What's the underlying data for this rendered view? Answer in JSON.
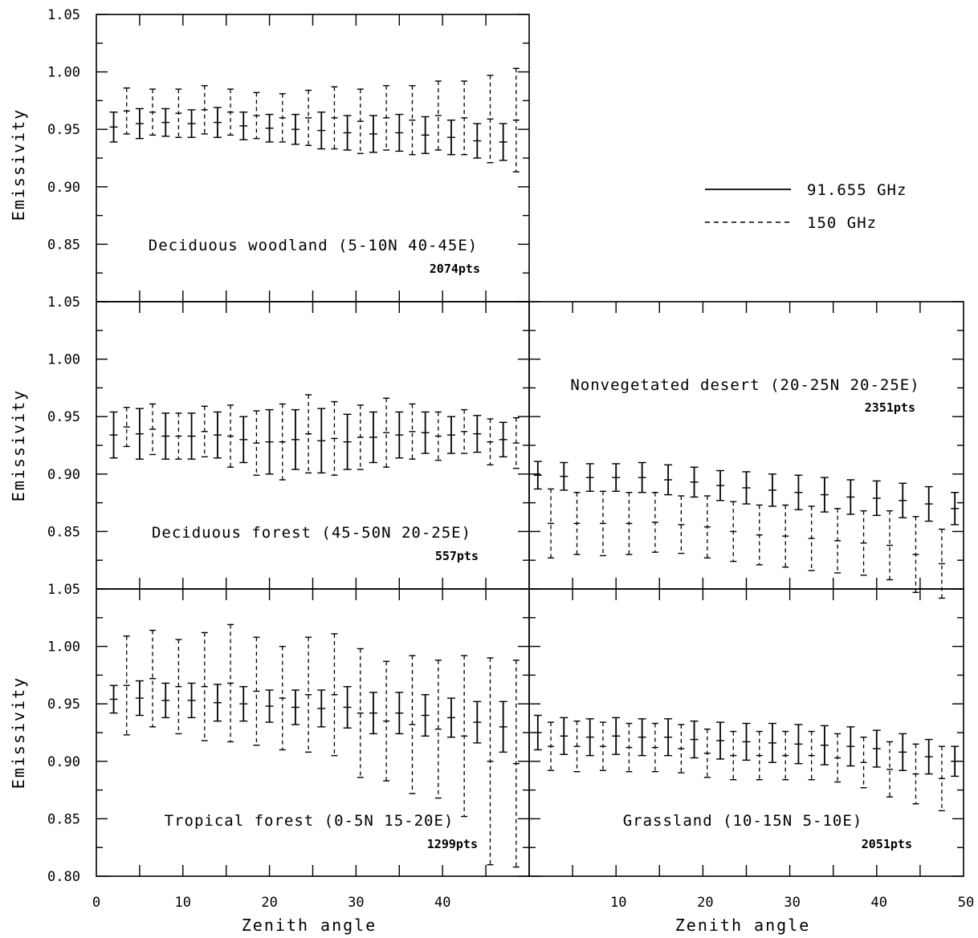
{
  "chart_data": [
    {
      "type": "errorbar",
      "label": "Deciduous woodland (5-10N 40-45E)",
      "npoints": "2074pts",
      "ylabel": "Emissivity",
      "xlabel": "",
      "ylim": [
        0.8,
        1.05
      ],
      "xlim": [
        0,
        50
      ],
      "series": [
        {
          "name": "91.655 GHz",
          "x": [
            2,
            5,
            8,
            11,
            14,
            17,
            20,
            23,
            26,
            29,
            32,
            35,
            38,
            41,
            44,
            47
          ],
          "y": [
            0.952,
            0.955,
            0.956,
            0.955,
            0.956,
            0.953,
            0.951,
            0.95,
            0.949,
            0.947,
            0.946,
            0.947,
            0.945,
            0.943,
            0.94,
            0.939
          ],
          "err": [
            0.013,
            0.013,
            0.012,
            0.012,
            0.013,
            0.012,
            0.012,
            0.013,
            0.016,
            0.015,
            0.016,
            0.016,
            0.016,
            0.015,
            0.015,
            0.016
          ]
        },
        {
          "name": "150 GHz",
          "x": [
            3.5,
            6.5,
            9.5,
            12.5,
            15.5,
            18.5,
            21.5,
            24.5,
            27.5,
            30.5,
            33.5,
            36.5,
            39.5,
            42.5,
            45.5,
            48.5
          ],
          "y": [
            0.966,
            0.965,
            0.964,
            0.967,
            0.965,
            0.962,
            0.96,
            0.96,
            0.96,
            0.957,
            0.96,
            0.958,
            0.962,
            0.96,
            0.959,
            0.958
          ],
          "err": [
            0.02,
            0.02,
            0.021,
            0.021,
            0.02,
            0.02,
            0.021,
            0.024,
            0.027,
            0.028,
            0.028,
            0.03,
            0.03,
            0.032,
            0.038,
            0.045
          ]
        }
      ]
    },
    {
      "type": "errorbar",
      "label": "Deciduous forest (45-50N 20-25E)",
      "npoints": "557pts",
      "ylabel": "Emissivity",
      "xlabel": "",
      "ylim": [
        0.8,
        1.05
      ],
      "xlim": [
        0,
        50
      ],
      "series": [
        {
          "name": "91.655 GHz",
          "x": [
            2,
            5,
            8,
            11,
            14,
            17,
            20,
            23,
            26,
            29,
            32,
            35,
            38,
            41,
            44,
            47
          ],
          "y": [
            0.934,
            0.935,
            0.933,
            0.933,
            0.934,
            0.93,
            0.928,
            0.93,
            0.929,
            0.928,
            0.932,
            0.934,
            0.936,
            0.934,
            0.935,
            0.93
          ],
          "err": [
            0.02,
            0.022,
            0.02,
            0.02,
            0.02,
            0.02,
            0.028,
            0.026,
            0.028,
            0.024,
            0.022,
            0.02,
            0.018,
            0.016,
            0.016,
            0.015
          ]
        },
        {
          "name": "150 GHz",
          "x": [
            3.5,
            6.5,
            9.5,
            12.5,
            15.5,
            18.5,
            21.5,
            24.5,
            27.5,
            30.5,
            33.5,
            36.5,
            39.5,
            42.5,
            45.5,
            48.5
          ],
          "y": [
            0.941,
            0.939,
            0.933,
            0.937,
            0.933,
            0.927,
            0.928,
            0.935,
            0.931,
            0.932,
            0.936,
            0.937,
            0.933,
            0.937,
            0.928,
            0.927
          ],
          "err": [
            0.017,
            0.022,
            0.02,
            0.022,
            0.027,
            0.028,
            0.033,
            0.034,
            0.032,
            0.028,
            0.03,
            0.024,
            0.021,
            0.019,
            0.02,
            0.022
          ]
        }
      ]
    },
    {
      "type": "errorbar",
      "label": "Nonvegetated desert (20-25N 20-25E)",
      "npoints": "2351pts",
      "ylabel": "",
      "xlabel": "",
      "ylim": [
        0.8,
        1.05
      ],
      "xlim": [
        0,
        50
      ],
      "series": [
        {
          "name": "91.655 GHz",
          "x": [
            1,
            4,
            7,
            10,
            13,
            16,
            19,
            22,
            25,
            28,
            31,
            34,
            37,
            40,
            43,
            46,
            49
          ],
          "y": [
            0.899,
            0.898,
            0.897,
            0.897,
            0.897,
            0.895,
            0.893,
            0.89,
            0.888,
            0.886,
            0.884,
            0.882,
            0.88,
            0.879,
            0.877,
            0.874,
            0.87
          ],
          "err": [
            0.012,
            0.012,
            0.012,
            0.012,
            0.013,
            0.013,
            0.013,
            0.013,
            0.014,
            0.014,
            0.015,
            0.015,
            0.015,
            0.015,
            0.015,
            0.015,
            0.014
          ]
        },
        {
          "name": "150 GHz",
          "x": [
            2.5,
            5.5,
            8.5,
            11.5,
            14.5,
            17.5,
            20.5,
            23.5,
            26.5,
            29.5,
            32.5,
            35.5,
            38.5,
            41.5,
            44.5,
            47.5
          ],
          "y": [
            0.857,
            0.857,
            0.857,
            0.857,
            0.858,
            0.856,
            0.854,
            0.85,
            0.847,
            0.846,
            0.844,
            0.842,
            0.84,
            0.838,
            0.83,
            0.822
          ],
          "err": [
            0.03,
            0.027,
            0.028,
            0.027,
            0.026,
            0.025,
            0.027,
            0.026,
            0.026,
            0.027,
            0.028,
            0.028,
            0.028,
            0.03,
            0.033,
            0.03
          ]
        }
      ]
    },
    {
      "type": "errorbar",
      "label": "Tropical forest (0-5N 15-20E)",
      "npoints": "1299pts",
      "ylabel": "Emissivity",
      "xlabel": "Zenith angle",
      "ylim": [
        0.8,
        1.05
      ],
      "xlim": [
        0,
        50
      ],
      "series": [
        {
          "name": "91.655 GHz",
          "x": [
            2,
            5,
            8,
            11,
            14,
            17,
            20,
            23,
            26,
            29,
            32,
            35,
            38,
            41,
            44,
            47
          ],
          "y": [
            0.954,
            0.955,
            0.953,
            0.953,
            0.951,
            0.95,
            0.948,
            0.947,
            0.946,
            0.947,
            0.942,
            0.942,
            0.94,
            0.938,
            0.934,
            0.93
          ],
          "err": [
            0.012,
            0.015,
            0.015,
            0.015,
            0.016,
            0.015,
            0.014,
            0.015,
            0.016,
            0.018,
            0.018,
            0.018,
            0.018,
            0.017,
            0.018,
            0.022
          ]
        },
        {
          "name": "150 GHz",
          "x": [
            3.5,
            6.5,
            9.5,
            12.5,
            15.5,
            18.5,
            21.5,
            24.5,
            27.5,
            30.5,
            33.5,
            36.5,
            39.5,
            42.5,
            45.5,
            48.5
          ],
          "y": [
            0.966,
            0.972,
            0.965,
            0.965,
            0.968,
            0.961,
            0.955,
            0.958,
            0.958,
            0.942,
            0.935,
            0.932,
            0.928,
            0.922,
            0.9,
            0.898
          ],
          "err": [
            0.043,
            0.042,
            0.041,
            0.047,
            0.051,
            0.047,
            0.045,
            0.05,
            0.053,
            0.056,
            0.052,
            0.06,
            0.06,
            0.07,
            0.09,
            0.09
          ]
        }
      ]
    },
    {
      "type": "errorbar",
      "label": "Grassland (10-15N 5-10E)",
      "npoints": "2051pts",
      "ylabel": "",
      "xlabel": "Zenith angle",
      "ylim": [
        0.8,
        1.05
      ],
      "xlim": [
        0,
        50
      ],
      "series": [
        {
          "name": "91.655 GHz",
          "x": [
            1,
            4,
            7,
            10,
            13,
            16,
            19,
            22,
            25,
            28,
            31,
            34,
            37,
            40,
            43,
            46,
            49
          ],
          "y": [
            0.925,
            0.922,
            0.921,
            0.922,
            0.921,
            0.921,
            0.919,
            0.918,
            0.917,
            0.916,
            0.915,
            0.914,
            0.913,
            0.911,
            0.908,
            0.904,
            0.9
          ],
          "err": [
            0.015,
            0.016,
            0.016,
            0.016,
            0.016,
            0.016,
            0.016,
            0.016,
            0.016,
            0.017,
            0.017,
            0.017,
            0.017,
            0.016,
            0.016,
            0.015,
            0.013
          ]
        },
        {
          "name": "150 GHz",
          "x": [
            2.5,
            5.5,
            8.5,
            11.5,
            14.5,
            17.5,
            20.5,
            23.5,
            26.5,
            29.5,
            32.5,
            35.5,
            38.5,
            41.5,
            44.5,
            47.5
          ],
          "y": [
            0.913,
            0.913,
            0.913,
            0.912,
            0.912,
            0.911,
            0.907,
            0.905,
            0.905,
            0.905,
            0.905,
            0.903,
            0.899,
            0.893,
            0.889,
            0.885
          ],
          "err": [
            0.021,
            0.022,
            0.021,
            0.021,
            0.021,
            0.021,
            0.021,
            0.021,
            0.021,
            0.021,
            0.021,
            0.021,
            0.022,
            0.024,
            0.026,
            0.028
          ]
        }
      ]
    }
  ],
  "legend": {
    "items": [
      {
        "label": "91.655 GHz",
        "style": "solid"
      },
      {
        "label": "150 GHz",
        "style": "dashed"
      }
    ]
  },
  "axes": {
    "ylabel": "Emissivity",
    "xlabel": "Zenith angle",
    "yticks": [
      "1.05",
      "1.00",
      "0.95",
      "0.90",
      "0.85",
      "0.80"
    ],
    "xticks_left": [
      "0",
      "10",
      "20",
      "30",
      "40"
    ],
    "xticks_right": [
      "10",
      "20",
      "30",
      "40",
      "50"
    ]
  },
  "colors": {
    "ink": "#000000",
    "background": "#ffffff"
  }
}
